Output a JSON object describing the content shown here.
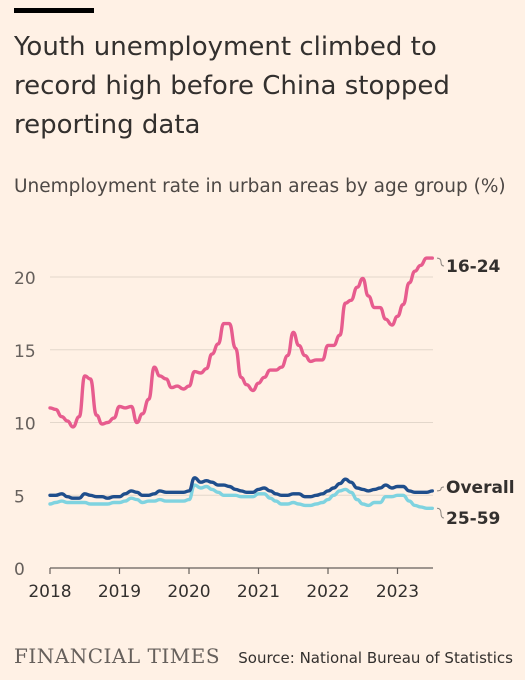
{
  "header": {
    "title": "Youth unemployment climbed to record high before China stopped reporting data",
    "subtitle": "Unemployment rate in urban areas by age group (%)"
  },
  "footer": {
    "brand": "FINANCIAL TIMES",
    "source": "Source: National Bureau of Statistics"
  },
  "chart_data": {
    "type": "line",
    "title": "Youth unemployment climbed to record high before China stopped reporting data",
    "ylabel": "Unemployment rate in urban areas by age group (%)",
    "xlabel": "",
    "xlim": [
      2018.0,
      2023.5
    ],
    "ylim": [
      0,
      22
    ],
    "yticks": [
      0,
      5,
      10,
      15,
      20
    ],
    "ytick_labels": [
      "0",
      "5",
      "10",
      "15",
      "20"
    ],
    "xticks": [
      2018,
      2019,
      2020,
      2021,
      2022,
      2023
    ],
    "xtick_labels": [
      "2018",
      "2019",
      "2020",
      "2021",
      "2022",
      "2023"
    ],
    "grid": true,
    "legend": "inline-right",
    "colors": {
      "16-24": "#e75c8e",
      "Overall": "#1f4e8c",
      "25-59": "#7fd3e0"
    },
    "series": [
      {
        "name": "16-24",
        "x": [
          2018.0,
          2018.08,
          2018.17,
          2018.25,
          2018.33,
          2018.42,
          2018.5,
          2018.58,
          2018.67,
          2018.75,
          2018.83,
          2018.92,
          2019.0,
          2019.08,
          2019.17,
          2019.25,
          2019.33,
          2019.42,
          2019.5,
          2019.58,
          2019.67,
          2019.75,
          2019.83,
          2019.92,
          2020.0,
          2020.08,
          2020.17,
          2020.25,
          2020.33,
          2020.42,
          2020.5,
          2020.58,
          2020.67,
          2020.75,
          2020.83,
          2020.92,
          2021.0,
          2021.08,
          2021.17,
          2021.25,
          2021.33,
          2021.42,
          2021.5,
          2021.58,
          2021.67,
          2021.75,
          2021.83,
          2021.92,
          2022.0,
          2022.08,
          2022.17,
          2022.25,
          2022.33,
          2022.42,
          2022.5,
          2022.58,
          2022.67,
          2022.75,
          2022.83,
          2022.92,
          2023.0,
          2023.08,
          2023.17,
          2023.25,
          2023.33,
          2023.42,
          2023.5
        ],
        "values": [
          11.0,
          10.9,
          10.4,
          10.1,
          9.7,
          10.4,
          13.2,
          13.0,
          10.5,
          9.9,
          10.0,
          10.3,
          11.1,
          11.0,
          11.1,
          10.0,
          10.6,
          11.6,
          13.8,
          13.2,
          13.0,
          12.4,
          12.5,
          12.3,
          12.5,
          13.5,
          13.4,
          13.7,
          14.7,
          15.4,
          16.8,
          16.8,
          15.1,
          13.1,
          12.6,
          12.2,
          12.7,
          13.1,
          13.6,
          13.6,
          13.8,
          14.6,
          16.2,
          15.3,
          14.6,
          14.2,
          14.3,
          14.3,
          15.3,
          15.3,
          16.0,
          18.2,
          18.4,
          19.3,
          19.9,
          18.7,
          17.9,
          17.9,
          17.1,
          16.7,
          17.3,
          18.1,
          19.6,
          20.4,
          20.8,
          21.3,
          21.3
        ]
      },
      {
        "name": "Overall",
        "x": [
          2018.0,
          2018.08,
          2018.17,
          2018.25,
          2018.33,
          2018.42,
          2018.5,
          2018.58,
          2018.67,
          2018.75,
          2018.83,
          2018.92,
          2019.0,
          2019.08,
          2019.17,
          2019.25,
          2019.33,
          2019.42,
          2019.5,
          2019.58,
          2019.67,
          2019.75,
          2019.83,
          2019.92,
          2020.0,
          2020.08,
          2020.17,
          2020.25,
          2020.33,
          2020.42,
          2020.5,
          2020.58,
          2020.67,
          2020.75,
          2020.83,
          2020.92,
          2021.0,
          2021.08,
          2021.17,
          2021.25,
          2021.33,
          2021.42,
          2021.5,
          2021.58,
          2021.67,
          2021.75,
          2021.83,
          2021.92,
          2022.0,
          2022.08,
          2022.17,
          2022.25,
          2022.33,
          2022.42,
          2022.5,
          2022.58,
          2022.67,
          2022.75,
          2022.83,
          2022.92,
          2023.0,
          2023.08,
          2023.17,
          2023.25,
          2023.33,
          2023.42,
          2023.5
        ],
        "values": [
          5.0,
          5.0,
          5.1,
          4.9,
          4.8,
          4.8,
          5.1,
          5.0,
          4.9,
          4.9,
          4.8,
          4.9,
          4.9,
          5.1,
          5.3,
          5.2,
          5.0,
          5.0,
          5.1,
          5.3,
          5.2,
          5.2,
          5.2,
          5.2,
          5.3,
          6.2,
          5.9,
          6.0,
          5.9,
          5.7,
          5.7,
          5.6,
          5.4,
          5.3,
          5.2,
          5.2,
          5.4,
          5.5,
          5.3,
          5.1,
          5.0,
          5.0,
          5.1,
          5.1,
          4.9,
          4.9,
          5.0,
          5.1,
          5.3,
          5.5,
          5.8,
          6.1,
          5.9,
          5.5,
          5.4,
          5.3,
          5.4,
          5.5,
          5.7,
          5.5,
          5.6,
          5.6,
          5.3,
          5.2,
          5.2,
          5.2,
          5.3
        ]
      },
      {
        "name": "25-59",
        "x": [
          2018.0,
          2018.08,
          2018.17,
          2018.25,
          2018.33,
          2018.42,
          2018.5,
          2018.58,
          2018.67,
          2018.75,
          2018.83,
          2018.92,
          2019.0,
          2019.08,
          2019.17,
          2019.25,
          2019.33,
          2019.42,
          2019.5,
          2019.58,
          2019.67,
          2019.75,
          2019.83,
          2019.92,
          2020.0,
          2020.08,
          2020.17,
          2020.25,
          2020.33,
          2020.42,
          2020.5,
          2020.58,
          2020.67,
          2020.75,
          2020.83,
          2020.92,
          2021.0,
          2021.08,
          2021.17,
          2021.25,
          2021.33,
          2021.42,
          2021.5,
          2021.58,
          2021.67,
          2021.75,
          2021.83,
          2021.92,
          2022.0,
          2022.08,
          2022.17,
          2022.25,
          2022.33,
          2022.42,
          2022.5,
          2022.58,
          2022.67,
          2022.75,
          2022.83,
          2022.92,
          2023.0,
          2023.08,
          2023.17,
          2023.25,
          2023.33,
          2023.42,
          2023.5
        ],
        "values": [
          4.4,
          4.5,
          4.6,
          4.5,
          4.5,
          4.5,
          4.5,
          4.4,
          4.4,
          4.4,
          4.4,
          4.5,
          4.5,
          4.6,
          4.8,
          4.7,
          4.5,
          4.6,
          4.6,
          4.7,
          4.6,
          4.6,
          4.6,
          4.6,
          4.7,
          5.7,
          5.5,
          5.6,
          5.4,
          5.2,
          5.0,
          5.0,
          5.0,
          4.9,
          4.9,
          4.9,
          5.1,
          5.1,
          4.8,
          4.6,
          4.4,
          4.4,
          4.5,
          4.4,
          4.3,
          4.3,
          4.4,
          4.5,
          4.7,
          5.0,
          5.3,
          5.4,
          5.2,
          4.7,
          4.4,
          4.3,
          4.5,
          4.5,
          4.9,
          4.9,
          5.0,
          5.0,
          4.6,
          4.3,
          4.2,
          4.1,
          4.1
        ]
      }
    ]
  }
}
